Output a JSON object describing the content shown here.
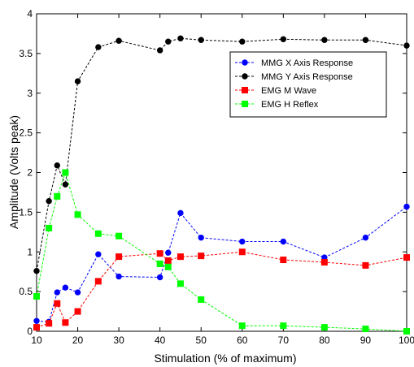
{
  "chart_data": {
    "type": "line",
    "xlabel": "Stimulation (% of maximum)",
    "ylabel": "Amplitude (Volts peak)",
    "xlim": [
      10,
      100
    ],
    "ylim": [
      0,
      4
    ],
    "xticks": [
      10,
      20,
      30,
      40,
      50,
      60,
      70,
      80,
      90,
      100
    ],
    "yticks": [
      0,
      0.5,
      1,
      1.5,
      2,
      2.5,
      3,
      3.5,
      4
    ],
    "legend_position": "top-right",
    "grid": false,
    "series": [
      {
        "name": "MMG X Axis Response",
        "color": "#0000ff",
        "marker": "circle",
        "points": [
          [
            10,
            0.13
          ],
          [
            13,
            0.12
          ],
          [
            15,
            0.49
          ],
          [
            17,
            0.55
          ],
          [
            20,
            0.49
          ],
          [
            25,
            0.97
          ],
          [
            30,
            0.69
          ],
          [
            40,
            0.68
          ],
          [
            42,
            0.99
          ],
          [
            45,
            1.49
          ],
          [
            50,
            1.18
          ],
          [
            60,
            1.13
          ],
          [
            70,
            1.13
          ],
          [
            80,
            0.93
          ],
          [
            90,
            1.18
          ],
          [
            100,
            1.57
          ]
        ]
      },
      {
        "name": "MMG Y Axis Response",
        "color": "#000000",
        "marker": "circle",
        "points": [
          [
            10,
            0.76
          ],
          [
            13,
            1.64
          ],
          [
            15,
            2.09
          ],
          [
            17,
            1.85
          ],
          [
            20,
            3.15
          ],
          [
            25,
            3.58
          ],
          [
            30,
            3.66
          ],
          [
            40,
            3.54
          ],
          [
            42,
            3.65
          ],
          [
            45,
            3.69
          ],
          [
            50,
            3.67
          ],
          [
            60,
            3.65
          ],
          [
            70,
            3.68
          ],
          [
            80,
            3.67
          ],
          [
            90,
            3.67
          ],
          [
            100,
            3.6
          ]
        ]
      },
      {
        "name": "EMG M Wave",
        "color": "#ff0000",
        "marker": "square",
        "points": [
          [
            10,
            0.05
          ],
          [
            13,
            0.1
          ],
          [
            15,
            0.35
          ],
          [
            17,
            0.11
          ],
          [
            20,
            0.25
          ],
          [
            25,
            0.63
          ],
          [
            30,
            0.94
          ],
          [
            40,
            0.98
          ],
          [
            42,
            0.89
          ],
          [
            45,
            0.94
          ],
          [
            50,
            0.95
          ],
          [
            60,
            1.0
          ],
          [
            70,
            0.9
          ],
          [
            80,
            0.87
          ],
          [
            90,
            0.83
          ],
          [
            100,
            0.93
          ]
        ]
      },
      {
        "name": "EMG H Reflex",
        "color": "#00ff00",
        "marker": "square",
        "points": [
          [
            10,
            0.44
          ],
          [
            13,
            1.3
          ],
          [
            15,
            1.7
          ],
          [
            17,
            2.0
          ],
          [
            20,
            1.47
          ],
          [
            25,
            1.23
          ],
          [
            30,
            1.2
          ],
          [
            40,
            0.85
          ],
          [
            42,
            0.81
          ],
          [
            45,
            0.6
          ],
          [
            50,
            0.4
          ],
          [
            60,
            0.07
          ],
          [
            70,
            0.07
          ],
          [
            80,
            0.05
          ],
          [
            90,
            0.03
          ],
          [
            100,
            0.0
          ]
        ]
      }
    ]
  }
}
